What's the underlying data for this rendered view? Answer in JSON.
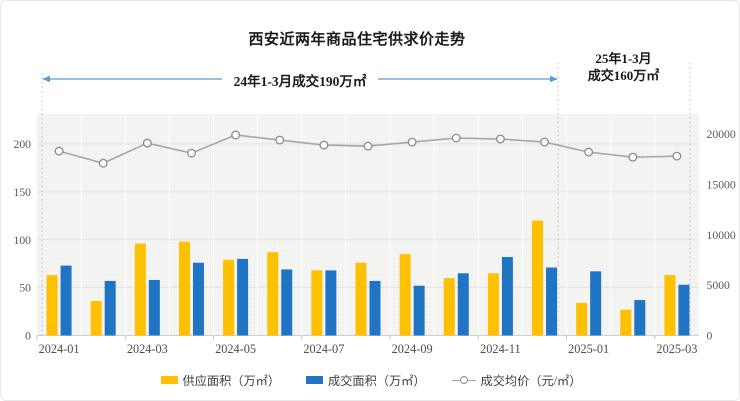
{
  "title": "西安近两年商品住宅供求价走势",
  "annotations": {
    "arrow_color": "#5B9BD5",
    "span_2024": {
      "label": "24年1-3月成交190万㎡",
      "from": "2024-01",
      "to": "2024-12"
    },
    "span_2025": {
      "line1": "25年1-3月",
      "line2": "成交160万㎡",
      "from": "2025-01",
      "to": "2025-03"
    }
  },
  "legend": [
    {
      "label": "供应面积（万㎡）",
      "swatch": "bar",
      "color": "#FFC000"
    },
    {
      "label": "成交面积（万㎡）",
      "swatch": "bar",
      "color": "#1F74C4"
    },
    {
      "label": "成交均价（元/㎡）",
      "swatch": "line-marker",
      "color": "#A6A6A6"
    }
  ],
  "chart_data": {
    "type": "bar+line combo",
    "title": "西安近两年商品住宅供求价走势",
    "categories": [
      "2024-01",
      "2024-02",
      "2024-03",
      "2024-04",
      "2024-05",
      "2024-06",
      "2024-07",
      "2024-08",
      "2024-09",
      "2024-10",
      "2024-11",
      "2024-12",
      "2025-01",
      "2025-02",
      "2025-03"
    ],
    "x_tick_labels": [
      "2024-01",
      "2024-03",
      "2024-05",
      "2024-07",
      "2024-09",
      "2024-11",
      "2025-01",
      "2025-03"
    ],
    "series": [
      {
        "name": "供应面积（万㎡）",
        "type": "bar",
        "axis": "left",
        "color": "#FFC000",
        "values": [
          63,
          36,
          96,
          98,
          79,
          87,
          68,
          76,
          85,
          60,
          65,
          120,
          34,
          27,
          63
        ]
      },
      {
        "name": "成交面积（万㎡）",
        "type": "bar",
        "axis": "left",
        "color": "#1F74C4",
        "values": [
          73,
          57,
          58,
          76,
          80,
          69,
          68,
          57,
          52,
          65,
          82,
          71,
          67,
          37,
          53
        ]
      },
      {
        "name": "成交均价（元/㎡）",
        "type": "line",
        "axis": "right",
        "color": "#A6A6A6",
        "marker": "open-circle",
        "values": [
          18300,
          17100,
          19100,
          18100,
          19900,
          19400,
          18900,
          18800,
          19200,
          19600,
          19500,
          19200,
          18200,
          17700,
          17800
        ]
      }
    ],
    "left_axis": {
      "ticks": [
        0,
        50,
        100,
        150,
        200
      ],
      "range": [
        0,
        200
      ]
    },
    "right_axis": {
      "ticks": [
        0,
        5000,
        10000,
        15000,
        20000
      ],
      "range": [
        0,
        20000
      ]
    },
    "grid": true,
    "legend_position": "bottom",
    "plot_bg": "#F4F4F3"
  }
}
